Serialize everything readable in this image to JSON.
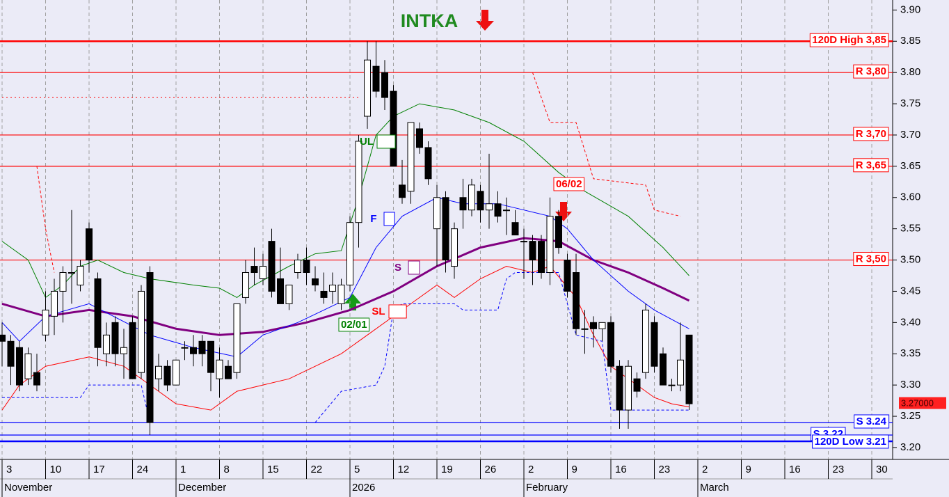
{
  "chart_data": {
    "type": "candlestick",
    "title": "INTKA",
    "xlim": [
      -0.24,
      102.4
    ],
    "ylim": [
      3.181,
      3.916
    ],
    "xticks": [
      {
        "value": 0,
        "label": "3"
      },
      {
        "value": 5,
        "label": "10"
      },
      {
        "value": 10,
        "label": "17"
      },
      {
        "value": 15,
        "label": "24"
      },
      {
        "value": 20,
        "label": "1"
      },
      {
        "value": 25,
        "label": "8"
      },
      {
        "value": 30,
        "label": "15"
      },
      {
        "value": 35,
        "label": "22"
      },
      {
        "value": 40,
        "label": "5"
      },
      {
        "value": 45,
        "label": "12"
      },
      {
        "value": 50,
        "label": "19"
      },
      {
        "value": 55,
        "label": "26"
      },
      {
        "value": 60,
        "label": "2"
      },
      {
        "value": 65,
        "label": "9"
      },
      {
        "value": 70,
        "label": "16"
      },
      {
        "value": 75,
        "label": "23"
      },
      {
        "value": 80,
        "label": "2"
      },
      {
        "value": 85,
        "label": "9"
      },
      {
        "value": 90,
        "label": "16"
      },
      {
        "value": 95,
        "label": "23"
      },
      {
        "value": 100,
        "label": "30"
      }
    ],
    "months": [
      {
        "value": 0,
        "label": "November"
      },
      {
        "value": 20,
        "label": "December"
      },
      {
        "value": 40,
        "label": "2026"
      },
      {
        "value": 60,
        "label": "February"
      },
      {
        "value": 80,
        "label": "March"
      }
    ],
    "yticks": [
      {
        "value": 3.2,
        "label": "3.20"
      },
      3.25,
      {
        "value": 3.3,
        "label": "3.30"
      },
      3.35,
      {
        "value": 3.4,
        "label": "3.40"
      },
      3.45,
      {
        "value": 3.5,
        "label": "3.50"
      },
      3.55,
      {
        "value": 3.6,
        "label": "3.60"
      },
      3.65,
      {
        "value": 3.7,
        "label": "3.70"
      },
      3.75,
      {
        "value": 3.8,
        "label": "3.80"
      },
      3.85,
      {
        "value": 3.9,
        "label": "3.90"
      }
    ],
    "grid": true,
    "open": [
      3.38,
      3.37,
      3.36,
      3.31,
      3.32,
      3.38,
      3.41,
      3.45,
      3.48,
      3.46,
      3.55,
      3.47,
      3.35,
      3.4,
      3.35,
      3.4,
      3.32,
      3.48,
      3.31,
      3.33,
      3.3,
      3.36,
      3.36,
      3.37,
      3.37,
      3.31,
      3.33,
      3.32,
      3.44,
      3.49,
      3.47,
      3.53,
      3.47,
      3.43,
      3.48,
      3.5,
      3.47,
      3.45,
      3.45,
      3.43,
      3.46,
      3.56,
      3.73,
      3.81,
      3.8,
      3.77,
      3.62,
      3.61,
      3.71,
      3.68,
      3.55,
      3.6,
      3.49,
      3.6,
      3.58,
      3.61,
      3.58,
      3.59,
      3.58,
      3.56,
      3.53,
      3.53,
      3.53,
      3.48,
      3.57,
      3.5,
      3.48,
      3.39,
      3.4,
      3.39,
      3.4,
      3.33,
      3.26,
      3.31,
      3.32,
      3.4,
      3.35,
      3.3,
      3.3,
      3.38
    ],
    "high": [
      3.4,
      3.38,
      3.37,
      3.36,
      3.35,
      3.45,
      3.47,
      3.49,
      3.58,
      3.5,
      3.56,
      3.48,
      3.4,
      3.41,
      3.39,
      3.41,
      3.46,
      3.49,
      3.35,
      3.34,
      3.34,
      3.37,
      3.38,
      3.38,
      3.37,
      3.36,
      3.34,
      3.43,
      3.5,
      3.52,
      3.51,
      3.55,
      3.52,
      3.46,
      3.51,
      3.52,
      3.49,
      3.48,
      3.48,
      3.47,
      3.57,
      3.7,
      3.85,
      3.85,
      3.82,
      3.78,
      3.66,
      3.72,
      3.72,
      3.69,
      3.62,
      3.61,
      3.56,
      3.63,
      3.63,
      3.62,
      3.67,
      3.61,
      3.6,
      3.58,
      3.55,
      3.54,
      3.54,
      3.6,
      3.58,
      3.51,
      3.51,
      3.42,
      3.41,
      3.4,
      3.41,
      3.34,
      3.34,
      3.32,
      3.43,
      3.41,
      3.36,
      3.31,
      3.4,
      3.38
    ],
    "low": [
      3.33,
      3.3,
      3.29,
      3.3,
      3.29,
      3.37,
      3.38,
      3.4,
      3.43,
      3.45,
      3.48,
      3.33,
      3.33,
      3.33,
      3.31,
      3.31,
      3.31,
      3.22,
      3.29,
      3.29,
      3.3,
      3.34,
      3.33,
      3.33,
      3.29,
      3.28,
      3.31,
      3.31,
      3.43,
      3.46,
      3.46,
      3.44,
      3.43,
      3.42,
      3.47,
      3.46,
      3.45,
      3.43,
      3.43,
      3.42,
      3.45,
      3.52,
      3.71,
      3.76,
      3.74,
      3.65,
      3.59,
      3.59,
      3.67,
      3.62,
      3.49,
      3.48,
      3.47,
      3.55,
      3.57,
      3.56,
      3.55,
      3.56,
      3.54,
      3.54,
      3.47,
      3.46,
      3.47,
      3.46,
      3.51,
      3.44,
      3.38,
      3.35,
      3.36,
      3.37,
      3.32,
      3.23,
      3.23,
      3.28,
      3.31,
      3.32,
      3.3,
      3.29,
      3.29,
      3.26
    ],
    "close": [
      3.37,
      3.33,
      3.3,
      3.35,
      3.3,
      3.42,
      3.45,
      3.48,
      3.48,
      3.49,
      3.5,
      3.36,
      3.38,
      3.35,
      3.36,
      3.31,
      3.45,
      3.24,
      3.33,
      3.3,
      3.34,
      3.36,
      3.35,
      3.35,
      3.32,
      3.34,
      3.31,
      3.43,
      3.48,
      3.48,
      3.49,
      3.45,
      3.43,
      3.46,
      3.5,
      3.48,
      3.46,
      3.44,
      3.46,
      3.46,
      3.56,
      3.69,
      3.82,
      3.77,
      3.76,
      3.65,
      3.6,
      3.72,
      3.68,
      3.63,
      3.6,
      3.5,
      3.55,
      3.58,
      3.62,
      3.58,
      3.59,
      3.57,
      3.58,
      3.54,
      3.53,
      3.5,
      3.48,
      3.57,
      3.52,
      3.45,
      3.39,
      3.39,
      3.39,
      3.4,
      3.33,
      3.26,
      3.33,
      3.29,
      3.42,
      3.33,
      3.3,
      3.3,
      3.34,
      3.27
    ],
    "last_label": "3.27000",
    "series": [
      {
        "name": "S",
        "color": "#800080",
        "width": 3,
        "style": "solid",
        "x": [
          0,
          5,
          10,
          15,
          20,
          25,
          30,
          35,
          40,
          45,
          50,
          55,
          60,
          64,
          68,
          72,
          76,
          79
        ],
        "values": [
          3.43,
          3.41,
          3.42,
          3.41,
          3.39,
          3.38,
          3.385,
          3.4,
          3.42,
          3.45,
          3.49,
          3.52,
          3.535,
          3.53,
          3.5,
          3.48,
          3.455,
          3.435
        ]
      },
      {
        "name": "F",
        "color": "#0000ff",
        "width": 1,
        "style": "solid",
        "x": [
          0,
          2,
          5,
          10,
          17,
          22,
          27,
          30,
          34,
          37,
          40,
          43,
          46,
          50,
          53,
          57,
          60,
          63,
          65,
          68,
          72,
          75,
          79
        ],
        "values": [
          3.4,
          3.37,
          3.41,
          3.43,
          3.38,
          3.36,
          3.345,
          3.38,
          3.4,
          3.42,
          3.44,
          3.52,
          3.57,
          3.6,
          3.59,
          3.59,
          3.58,
          3.57,
          3.55,
          3.5,
          3.45,
          3.42,
          3.39
        ]
      },
      {
        "name": "UL",
        "color": "#008000",
        "width": 1,
        "style": "solid",
        "x": [
          0,
          3,
          5,
          7,
          9,
          11,
          14,
          17,
          22,
          25,
          27,
          29,
          33,
          36,
          39,
          41,
          43,
          45,
          48,
          52,
          56,
          60,
          64,
          67,
          72,
          76,
          79
        ],
        "values": [
          3.53,
          3.5,
          3.44,
          3.46,
          3.49,
          3.5,
          3.48,
          3.47,
          3.46,
          3.455,
          3.44,
          3.46,
          3.49,
          3.51,
          3.515,
          3.6,
          3.7,
          3.73,
          3.75,
          3.74,
          3.72,
          3.69,
          3.64,
          3.61,
          3.57,
          3.52,
          3.475
        ]
      },
      {
        "name": "SL",
        "color": "#ff0000",
        "width": 1,
        "style": "solid",
        "x": [
          0,
          2,
          5,
          10,
          14,
          17,
          20,
          24,
          27,
          30,
          33,
          36,
          39,
          42,
          45,
          47,
          50,
          52,
          55,
          58,
          61,
          63,
          66,
          68,
          70,
          73,
          75,
          77,
          79
        ],
        "values": [
          3.26,
          3.3,
          3.33,
          3.345,
          3.33,
          3.3,
          3.27,
          3.26,
          3.29,
          3.3,
          3.31,
          3.33,
          3.35,
          3.38,
          3.41,
          3.43,
          3.46,
          3.44,
          3.47,
          3.49,
          3.48,
          3.49,
          3.44,
          3.38,
          3.33,
          3.3,
          3.28,
          3.27,
          3.265
        ]
      },
      {
        "color": "#ff0000",
        "width": 1,
        "style": "dotted",
        "x": [
          0,
          41
        ],
        "values": [
          3.76,
          3.76
        ]
      },
      {
        "color": "#ff0000",
        "width": 1,
        "style": "dashed",
        "x": [
          4,
          5,
          6,
          7,
          61,
          62,
          63,
          65,
          66,
          68,
          74,
          75,
          78
        ],
        "values": [
          3.65,
          3.55,
          3.48,
          null,
          3.8,
          3.76,
          3.72,
          3.72,
          3.72,
          3.63,
          3.62,
          3.58,
          3.57
        ]
      },
      {
        "color": "#0000ff",
        "width": 1,
        "style": "dashed",
        "x": [
          0,
          9,
          10,
          16,
          17,
          18,
          36,
          39,
          43,
          44,
          45,
          46,
          52,
          53,
          57,
          58,
          59,
          64,
          65,
          66,
          69,
          70,
          79
        ],
        "values": [
          3.28,
          3.28,
          3.3,
          3.3,
          3.24,
          null,
          3.24,
          3.29,
          3.3,
          3.33,
          3.42,
          3.43,
          3.43,
          3.42,
          3.42,
          3.47,
          3.48,
          3.48,
          3.43,
          3.38,
          3.37,
          3.26,
          3.26
        ]
      }
    ],
    "levels": [
      {
        "value": 3.85,
        "label": "120D High 3,85",
        "color": "#ff0000",
        "width": 2.5
      },
      {
        "value": 3.8,
        "label": "R 3,80",
        "color": "#ff0000",
        "width": 1.2
      },
      {
        "value": 3.7,
        "label": "R 3,70",
        "color": "#ff0000",
        "width": 1.2
      },
      {
        "value": 3.65,
        "label": "R 3,65",
        "color": "#ff0000",
        "width": 1.2
      },
      {
        "value": 3.5,
        "label": "R 3,50",
        "color": "#ff0000",
        "width": 1.2
      },
      {
        "value": 3.24,
        "label": "S 3.24",
        "color": "#0000ff",
        "width": 1.2
      },
      {
        "value": 3.22,
        "label": "S 3.22",
        "color": "#0000ff",
        "width": 1.2
      },
      {
        "value": 3.21,
        "label": "120D Low 3.21",
        "color": "#0000ff",
        "width": 2.5
      }
    ],
    "signals": [
      {
        "text": "02/01",
        "color": "#008000"
      },
      {
        "text": "06/02",
        "color": "#ff0000"
      }
    ]
  }
}
